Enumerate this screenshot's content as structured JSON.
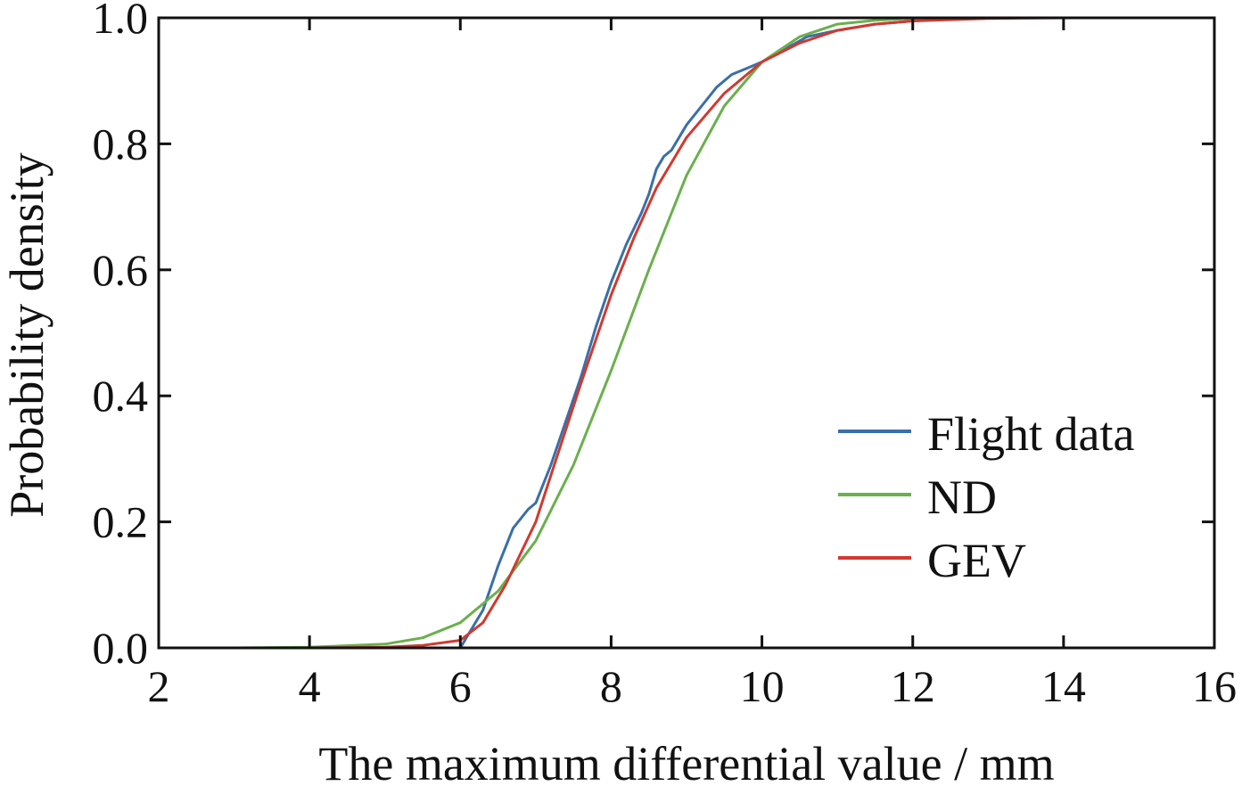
{
  "chart_data": {
    "type": "line",
    "title": "",
    "xlabel": "The maximum differential value / mm",
    "ylabel": "Probability density",
    "xlim": [
      2,
      16
    ],
    "ylim": [
      0,
      1
    ],
    "x_ticks": [
      "2",
      "4",
      "6",
      "8",
      "10",
      "12",
      "14",
      "16"
    ],
    "y_ticks": [
      "0.0",
      "0.2",
      "0.4",
      "0.6",
      "0.8",
      "1.0"
    ],
    "legend_position": "bottom-right",
    "series": [
      {
        "name": "Flight data",
        "color": "#3a6fa8",
        "x": [
          2,
          6.0,
          6.1,
          6.3,
          6.5,
          6.7,
          6.9,
          7.0,
          7.2,
          7.4,
          7.6,
          7.8,
          8.0,
          8.2,
          8.4,
          8.5,
          8.6,
          8.7,
          8.8,
          9.0,
          9.2,
          9.4,
          9.6,
          9.8,
          10.0,
          10.3,
          10.6,
          11.0,
          11.5,
          12.0,
          12.5,
          13.0,
          16
        ],
        "y": [
          0.0,
          0.0,
          0.02,
          0.06,
          0.13,
          0.19,
          0.22,
          0.23,
          0.29,
          0.36,
          0.43,
          0.51,
          0.58,
          0.64,
          0.69,
          0.72,
          0.76,
          0.78,
          0.79,
          0.83,
          0.86,
          0.89,
          0.91,
          0.92,
          0.93,
          0.95,
          0.97,
          0.98,
          0.99,
          0.995,
          0.998,
          1.0,
          1.0
        ]
      },
      {
        "name": "ND",
        "color": "#6ab04c",
        "x": [
          2,
          3,
          4,
          5,
          5.5,
          6,
          6.5,
          7,
          7.5,
          8,
          8.5,
          9,
          9.5,
          10,
          10.5,
          11,
          11.5,
          12,
          13,
          14,
          16
        ],
        "y": [
          0.0,
          0.0,
          0.001,
          0.006,
          0.016,
          0.04,
          0.09,
          0.17,
          0.29,
          0.44,
          0.6,
          0.75,
          0.86,
          0.93,
          0.97,
          0.99,
          0.996,
          0.999,
          1.0,
          1.0,
          1.0
        ]
      },
      {
        "name": "GEV",
        "color": "#d03a30",
        "x": [
          2,
          4,
          5,
          5.5,
          6,
          6.3,
          6.6,
          7,
          7.3,
          7.6,
          8,
          8.3,
          8.6,
          9,
          9.5,
          10,
          10.5,
          11,
          11.5,
          12,
          13,
          14,
          16
        ],
        "y": [
          0.0,
          0.0,
          0.001,
          0.004,
          0.012,
          0.04,
          0.1,
          0.2,
          0.31,
          0.42,
          0.56,
          0.65,
          0.73,
          0.81,
          0.88,
          0.93,
          0.96,
          0.98,
          0.99,
          0.995,
          0.999,
          1.0,
          1.0
        ]
      }
    ]
  }
}
